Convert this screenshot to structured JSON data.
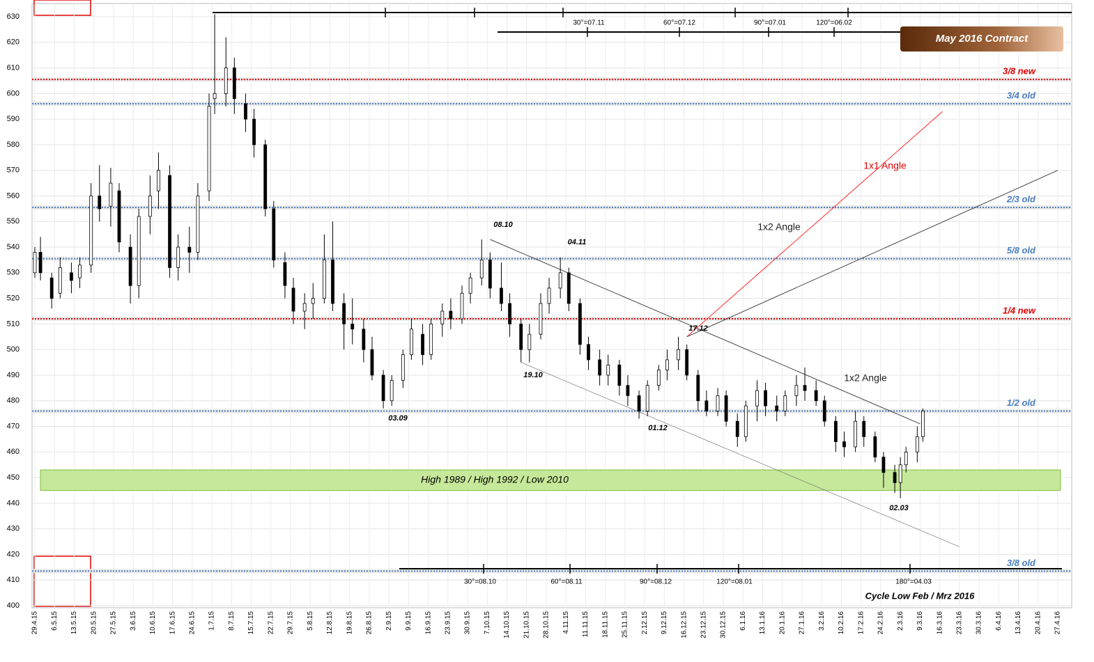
{
  "chart_data": {
    "type": "candlestick",
    "title": "May 2016 Contract",
    "ylim": [
      400,
      630
    ],
    "yticks": [
      400,
      410,
      420,
      430,
      440,
      450,
      460,
      470,
      480,
      490,
      500,
      510,
      520,
      530,
      540,
      550,
      560,
      570,
      580,
      590,
      600,
      610,
      620,
      630
    ],
    "xlim": [
      "29.4.15",
      "27.4.16"
    ],
    "xticks": [
      "29.4.15",
      "6.5.15",
      "13.5.15",
      "20.5.15",
      "27.5.15",
      "3.6.15",
      "10.6.15",
      "17.6.15",
      "24.6.15",
      "1.7.15",
      "8.7.15",
      "15.7.15",
      "22.7.15",
      "29.7.15",
      "5.8.15",
      "12.8.15",
      "19.8.15",
      "26.8.15",
      "2.9.15",
      "9.9.15",
      "16.9.15",
      "23.9.15",
      "30.9.15",
      "7.10.15",
      "14.10.15",
      "21.10.15",
      "28.10.15",
      "4.11.15",
      "11.11.15",
      "18.11.15",
      "25.11.15",
      "2.12.15",
      "9.12.15",
      "16.12.15",
      "23.12.15",
      "30.12.15",
      "6.1.16",
      "13.1.16",
      "20.1.16",
      "27.1.16",
      "3.2.16",
      "10.2.16",
      "17.2.16",
      "24.2.16",
      "2.3.16",
      "9.3.16",
      "16.3.16",
      "23.3.16",
      "30.3.16",
      "6.4.16",
      "13.4.16",
      "20.4.16",
      "27.4.16"
    ],
    "grid": true,
    "x": [
      "29.4.15",
      "1.5.15",
      "5.5.15",
      "8.5.15",
      "12.5.15",
      "15.5.15",
      "19.5.15",
      "22.5.15",
      "26.5.15",
      "29.5.15",
      "2.6.15",
      "5.6.15",
      "9.6.15",
      "12.6.15",
      "16.6.15",
      "19.6.15",
      "23.6.15",
      "26.6.15",
      "30.6.15",
      "2.7.15",
      "6.7.15",
      "9.7.15",
      "13.7.15",
      "16.7.15",
      "20.7.15",
      "23.7.15",
      "27.7.15",
      "30.7.15",
      "3.8.15",
      "6.8.15",
      "10.8.15",
      "13.8.15",
      "17.8.15",
      "20.8.15",
      "24.8.15",
      "27.8.15",
      "31.8.15",
      "3.9.15",
      "7.9.15",
      "10.9.15",
      "14.9.15",
      "17.9.15",
      "21.9.15",
      "24.9.15",
      "28.9.15",
      "1.10.15",
      "5.10.15",
      "8.10.15",
      "12.10.15",
      "15.10.15",
      "19.10.15",
      "22.10.15",
      "26.10.15",
      "29.10.15",
      "2.11.15",
      "5.11.15",
      "9.11.15",
      "12.11.15",
      "16.11.15",
      "19.11.15",
      "23.11.15",
      "26.11.15",
      "30.11.15",
      "3.12.15",
      "7.12.15",
      "10.12.15",
      "14.12.15",
      "17.12.15",
      "21.12.15",
      "24.12.15",
      "28.12.15",
      "31.12.15",
      "4.1.16",
      "7.1.16",
      "11.1.16",
      "14.1.16",
      "18.1.16",
      "21.1.16",
      "25.1.16",
      "28.1.16",
      "1.2.16",
      "4.2.16",
      "8.2.16",
      "11.2.16",
      "15.2.16",
      "18.2.16",
      "22.2.16",
      "25.2.16",
      "29.2.16",
      "2.3.16",
      "4.3.16",
      "8.3.16",
      "10.3.16"
    ],
    "open": [
      530,
      538,
      528,
      522,
      530,
      528,
      533,
      560,
      556,
      562,
      540,
      525,
      552,
      562,
      568,
      532,
      540,
      538,
      562,
      598,
      600,
      610,
      596,
      590,
      580,
      555,
      534,
      524,
      515,
      518,
      520,
      535,
      518,
      510,
      508,
      500,
      490,
      480,
      488,
      498,
      506,
      498,
      510,
      515,
      512,
      522,
      528,
      535,
      524,
      518,
      510,
      500,
      506,
      518,
      524,
      530,
      518,
      502,
      496,
      490,
      494,
      486,
      482,
      476,
      486,
      492,
      496,
      500,
      490,
      480,
      476,
      482,
      472,
      466,
      478,
      484,
      478,
      476,
      482,
      486,
      484,
      480,
      472,
      464,
      462,
      472,
      466,
      458,
      452,
      448,
      455,
      460,
      466
    ],
    "high": [
      540,
      544,
      530,
      536,
      534,
      536,
      565,
      572,
      571,
      565,
      545,
      555,
      568,
      577,
      572,
      545,
      548,
      565,
      600,
      631,
      622,
      614,
      600,
      594,
      582,
      558,
      538,
      528,
      522,
      526,
      545,
      550,
      522,
      520,
      512,
      505,
      492,
      490,
      500,
      512,
      510,
      512,
      518,
      520,
      525,
      530,
      543,
      538,
      534,
      522,
      512,
      510,
      522,
      528,
      536,
      532,
      520,
      505,
      500,
      498,
      496,
      490,
      484,
      488,
      494,
      500,
      505,
      502,
      492,
      484,
      485,
      484,
      475,
      480,
      488,
      487,
      482,
      484,
      490,
      493,
      488,
      482,
      474,
      468,
      476,
      474,
      468,
      460,
      455,
      458,
      462,
      470,
      477
    ],
    "low": [
      528,
      527,
      516,
      520,
      522,
      524,
      530,
      550,
      548,
      538,
      518,
      520,
      545,
      555,
      528,
      527,
      530,
      535,
      558,
      592,
      595,
      592,
      585,
      575,
      552,
      532,
      520,
      510,
      508,
      512,
      518,
      515,
      500,
      502,
      495,
      488,
      477,
      478,
      485,
      496,
      494,
      496,
      505,
      508,
      510,
      518,
      525,
      520,
      515,
      505,
      495,
      495,
      504,
      514,
      520,
      515,
      498,
      492,
      486,
      486,
      482,
      478,
      473,
      474,
      484,
      488,
      492,
      488,
      476,
      474,
      474,
      470,
      462,
      464,
      472,
      474,
      472,
      474,
      478,
      480,
      478,
      470,
      460,
      458,
      460,
      462,
      456,
      446,
      444,
      442,
      452,
      456,
      464
    ],
    "close": [
      538,
      530,
      520,
      532,
      527,
      533,
      560,
      555,
      565,
      542,
      525,
      552,
      560,
      570,
      532,
      540,
      538,
      560,
      595,
      600,
      610,
      598,
      590,
      580,
      555,
      535,
      525,
      515,
      518,
      520,
      535,
      518,
      510,
      508,
      500,
      490,
      480,
      488,
      498,
      508,
      498,
      510,
      515,
      512,
      522,
      528,
      535,
      524,
      518,
      510,
      500,
      506,
      518,
      524,
      530,
      518,
      502,
      496,
      490,
      494,
      486,
      482,
      476,
      486,
      492,
      496,
      500,
      490,
      480,
      476,
      482,
      472,
      466,
      478,
      484,
      478,
      476,
      482,
      486,
      484,
      480,
      472,
      464,
      462,
      472,
      466,
      458,
      452,
      448,
      455,
      460,
      466,
      476
    ],
    "levels": [
      {
        "label": "3/8 new",
        "value": 605.5,
        "color": "#e00000"
      },
      {
        "label": "3/4 old",
        "value": 596,
        "color": "#4a7cc0"
      },
      {
        "label": "2/3 old",
        "value": 555.5,
        "color": "#4a7cc0"
      },
      {
        "label": "5/8 old",
        "value": 535.5,
        "color": "#4a7cc0"
      },
      {
        "label": "1/4 new",
        "value": 512,
        "color": "#e00000"
      },
      {
        "label": "1/2 old",
        "value": 476,
        "color": "#4a7cc0"
      },
      {
        "label": "3/8 old",
        "value": 413.5,
        "color": "#4a7cc0"
      }
    ],
    "zone": {
      "label": "High 1989 / High 1992 / Low 2010",
      "from": 445,
      "to": 453
    },
    "trendlines": [
      {
        "from": [
          "8.10.15",
          543
        ],
        "to": [
          "9.3.16",
          471
        ],
        "color": "#444444"
      },
      {
        "from": [
          "19.10.15",
          495
        ],
        "to": [
          "23.3.16",
          423
        ],
        "color": "#777777"
      },
      {
        "from": [
          "17.12.15",
          505
        ],
        "to": [
          "17.3.16",
          593
        ],
        "color": "#ff2020"
      },
      {
        "from": [
          "17.12.15",
          505
        ],
        "to": [
          "27.4.16",
          570
        ],
        "color": "#444444"
      }
    ],
    "angle_labels": [
      "1x1 Angle",
      "1x2 Angle",
      "1x2 Angle"
    ],
    "pivots": [
      "08.10",
      "04.11",
      "19.10",
      "03.09",
      "01.12",
      "17.12",
      "02.03"
    ],
    "cycles_top": [
      "30°=07.11",
      "60°=07.12",
      "90°=07.01",
      "120°=06.02"
    ],
    "cycles_bottom": [
      "30°=08.10",
      "60°=08.11",
      "90°=08.12",
      "120°=08.01",
      "180°=04.03"
    ],
    "note": "Cycle Low Feb / Mrz 2016"
  }
}
